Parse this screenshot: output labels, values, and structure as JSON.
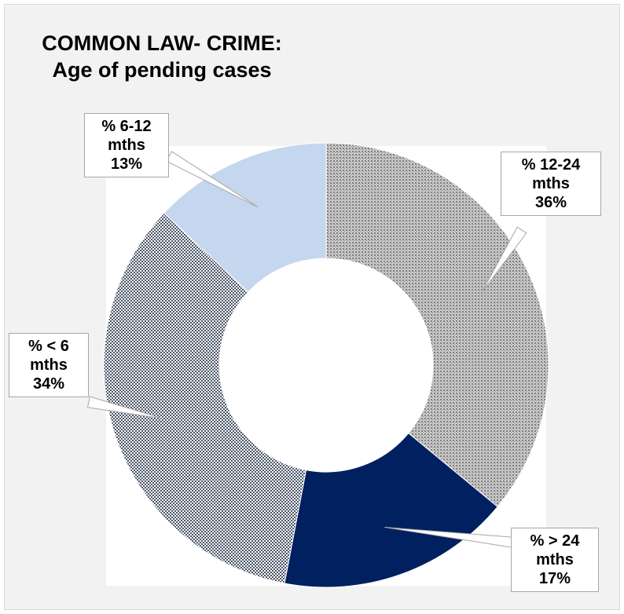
{
  "chart_data": {
    "type": "donut",
    "title": [
      "COMMON LAW- CRIME:",
      "Age of pending cases"
    ],
    "slices": [
      {
        "name": "% 12-24 mths",
        "value": 36,
        "label_lines": [
          "% 12-24",
          "mths",
          "36%"
        ],
        "fill": "pattern-gray",
        "color": "#9e9e9e"
      },
      {
        "name": "% > 24 mths",
        "value": 17,
        "label_lines": [
          "% > 24",
          "mths",
          "17%"
        ],
        "fill": "solid",
        "color": "#002060"
      },
      {
        "name": "% < 6 mths",
        "value": 34,
        "label_lines": [
          "% < 6",
          "mths",
          "34%"
        ],
        "fill": "pattern-checker",
        "color": "#5a6070"
      },
      {
        "name": "% 6-12 mths",
        "value": 13,
        "label_lines": [
          "% 6-12",
          "mths",
          "13%"
        ],
        "fill": "solid",
        "color": "#c5d6ef"
      }
    ],
    "start_angle_deg": 0,
    "direction": "clockwise",
    "legend": "none"
  }
}
